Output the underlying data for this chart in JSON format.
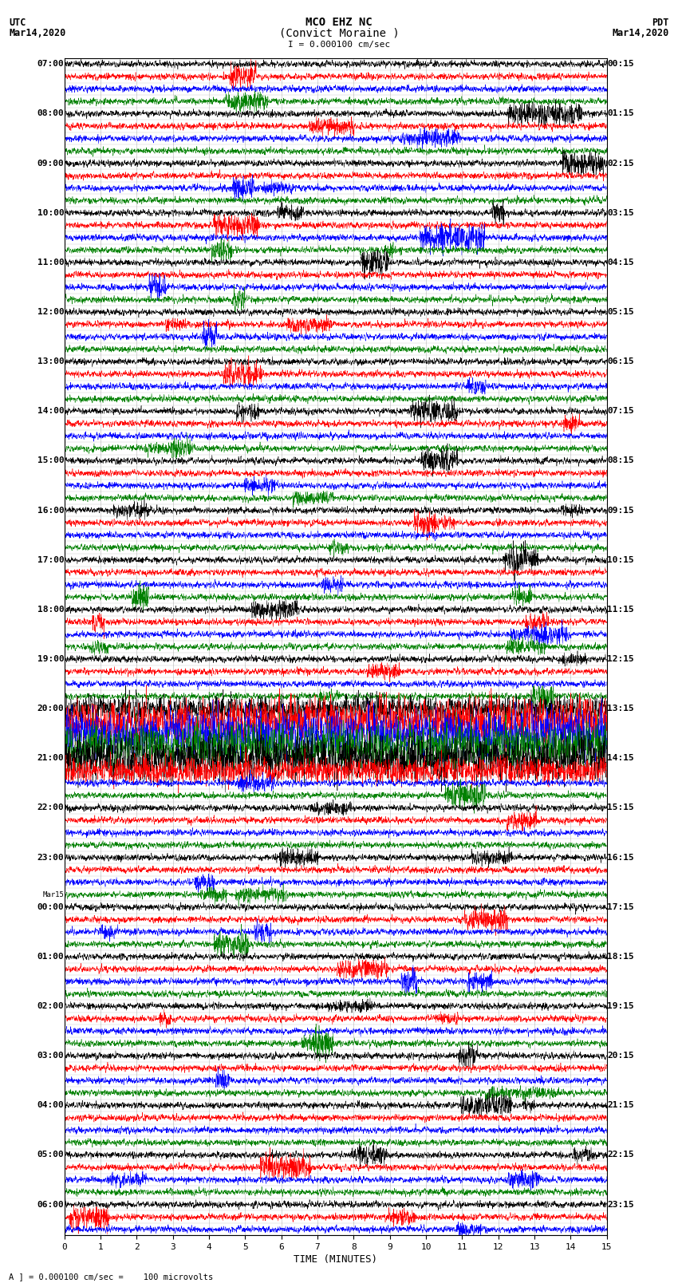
{
  "title_line1": "MCO EHZ NC",
  "title_line2": "(Convict Moraine )",
  "scale_label": "I = 0.000100 cm/sec",
  "left_header_line1": "UTC",
  "left_header_line2": "Mar14,2020",
  "right_header_line1": "PDT",
  "right_header_line2": "Mar14,2020",
  "bottom_label": "TIME (MINUTES)",
  "bottom_note": "A ] = 0.000100 cm/sec =    100 microvolts",
  "utc_labels": {
    "0": "07:00",
    "4": "08:00",
    "8": "09:00",
    "12": "10:00",
    "16": "11:00",
    "20": "12:00",
    "24": "13:00",
    "28": "14:00",
    "32": "15:00",
    "36": "16:00",
    "40": "17:00",
    "44": "18:00",
    "48": "19:00",
    "52": "20:00",
    "56": "21:00",
    "60": "22:00",
    "64": "23:00",
    "67": "Mar15",
    "68": "00:00",
    "72": "01:00",
    "76": "02:00",
    "80": "03:00",
    "84": "04:00",
    "88": "05:00",
    "92": "06:00"
  },
  "pdt_labels": {
    "0": "00:15",
    "4": "01:15",
    "8": "02:15",
    "12": "03:15",
    "16": "04:15",
    "20": "05:15",
    "24": "06:15",
    "28": "07:15",
    "32": "08:15",
    "36": "09:15",
    "40": "10:15",
    "44": "11:15",
    "48": "12:15",
    "52": "13:15",
    "56": "14:15",
    "60": "15:15",
    "64": "16:15",
    "68": "17:15",
    "72": "18:15",
    "76": "19:15",
    "80": "20:15",
    "84": "21:15",
    "88": "22:15",
    "92": "23:15"
  },
  "trace_colors": [
    "black",
    "red",
    "blue",
    "green"
  ],
  "n_rows": 95,
  "n_points": 3000,
  "x_min": 0,
  "x_max": 15,
  "background_color": "white",
  "grid_color": "#999999",
  "seed": 12345,
  "base_amplitude": 0.12,
  "high_amp_rows": [
    52,
    53,
    54,
    55,
    56,
    57
  ],
  "very_high_amp_rows": [
    53,
    54,
    55,
    56
  ],
  "high_amp_multiplier": 4.0,
  "very_high_amp_multiplier": 7.0
}
